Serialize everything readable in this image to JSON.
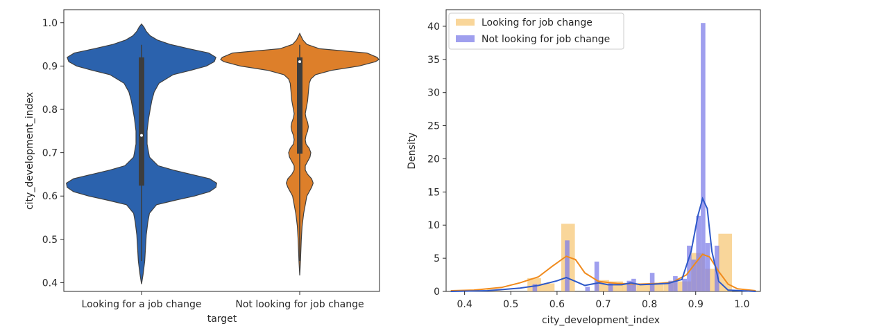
{
  "colors": {
    "looking": "#2b62ad",
    "not_looking": "#dd7f2a",
    "hist_looking": "#f7c878",
    "hist_not_looking": "#7f7fe8",
    "kde_looking": "#f08a1c",
    "kde_not_looking": "#2d58c8",
    "axis": "#262626"
  },
  "chart_data": [
    {
      "type": "violin",
      "xlabel": "target",
      "ylabel": "city_development_index",
      "ylim": [
        0.38,
        1.03
      ],
      "yticks": [
        0.4,
        0.5,
        0.6,
        0.7,
        0.8,
        0.9,
        1.0
      ],
      "ytick_labels": [
        "0.4",
        "0.5",
        "0.6",
        "0.7",
        "0.8",
        "0.9",
        "1.0"
      ],
      "categories": [
        "Looking for a job change",
        "Not looking for job change"
      ],
      "violins": [
        {
          "category": "Looking for a job change",
          "color_key": "looking",
          "min": 0.397,
          "max": 0.997,
          "q1": 0.624,
          "median": 0.74,
          "q3": 0.92,
          "whisker_low": 0.45,
          "whisker_high": 0.949,
          "profile": [
            [
              0.397,
              0.0
            ],
            [
              0.42,
              0.02
            ],
            [
              0.45,
              0.04
            ],
            [
              0.48,
              0.05
            ],
            [
              0.51,
              0.06
            ],
            [
              0.54,
              0.08
            ],
            [
              0.56,
              0.1
            ],
            [
              0.58,
              0.19
            ],
            [
              0.59,
              0.42
            ],
            [
              0.6,
              0.67
            ],
            [
              0.61,
              0.86
            ],
            [
              0.62,
              0.94
            ],
            [
              0.63,
              0.95
            ],
            [
              0.64,
              0.86
            ],
            [
              0.65,
              0.63
            ],
            [
              0.66,
              0.4
            ],
            [
              0.67,
              0.21
            ],
            [
              0.69,
              0.1
            ],
            [
              0.72,
              0.07
            ],
            [
              0.75,
              0.07
            ],
            [
              0.78,
              0.09
            ],
            [
              0.8,
              0.11
            ],
            [
              0.82,
              0.13
            ],
            [
              0.84,
              0.16
            ],
            [
              0.86,
              0.22
            ],
            [
              0.88,
              0.4
            ],
            [
              0.89,
              0.62
            ],
            [
              0.9,
              0.82
            ],
            [
              0.91,
              0.92
            ],
            [
              0.92,
              0.94
            ],
            [
              0.93,
              0.85
            ],
            [
              0.94,
              0.6
            ],
            [
              0.95,
              0.36
            ],
            [
              0.96,
              0.2
            ],
            [
              0.97,
              0.11
            ],
            [
              0.98,
              0.06
            ],
            [
              0.99,
              0.03
            ],
            [
              0.997,
              0.0
            ]
          ]
        },
        {
          "category": "Not looking for job change",
          "color_key": "not_looking",
          "min": 0.417,
          "max": 0.975,
          "q1": 0.698,
          "median": 0.91,
          "q3": 0.92,
          "whisker_low": 0.45,
          "whisker_high": 0.949,
          "profile": [
            [
              0.417,
              0.0
            ],
            [
              0.45,
              0.01
            ],
            [
              0.5,
              0.02
            ],
            [
              0.53,
              0.03
            ],
            [
              0.56,
              0.05
            ],
            [
              0.58,
              0.07
            ],
            [
              0.6,
              0.09
            ],
            [
              0.61,
              0.12
            ],
            [
              0.62,
              0.15
            ],
            [
              0.63,
              0.17
            ],
            [
              0.64,
              0.15
            ],
            [
              0.65,
              0.1
            ],
            [
              0.66,
              0.07
            ],
            [
              0.67,
              0.07
            ],
            [
              0.68,
              0.1
            ],
            [
              0.69,
              0.13
            ],
            [
              0.7,
              0.14
            ],
            [
              0.71,
              0.12
            ],
            [
              0.72,
              0.08
            ],
            [
              0.73,
              0.07
            ],
            [
              0.74,
              0.08
            ],
            [
              0.75,
              0.1
            ],
            [
              0.76,
              0.11
            ],
            [
              0.77,
              0.1
            ],
            [
              0.78,
              0.08
            ],
            [
              0.79,
              0.07
            ],
            [
              0.8,
              0.08
            ],
            [
              0.82,
              0.1
            ],
            [
              0.84,
              0.11
            ],
            [
              0.86,
              0.12
            ],
            [
              0.87,
              0.14
            ],
            [
              0.88,
              0.2
            ],
            [
              0.89,
              0.4
            ],
            [
              0.9,
              0.75
            ],
            [
              0.91,
              0.96
            ],
            [
              0.915,
              1.0
            ],
            [
              0.92,
              0.98
            ],
            [
              0.93,
              0.85
            ],
            [
              0.935,
              0.55
            ],
            [
              0.94,
              0.25
            ],
            [
              0.95,
              0.09
            ],
            [
              0.96,
              0.04
            ],
            [
              0.975,
              0.0
            ]
          ]
        }
      ]
    },
    {
      "type": "histogram+kde",
      "xlabel": "city_development_index",
      "ylabel": "Density",
      "xlim": [
        0.36,
        1.04
      ],
      "ylim": [
        0,
        42.5
      ],
      "xticks": [
        0.4,
        0.5,
        0.6,
        0.7,
        0.8,
        0.9,
        1.0
      ],
      "xtick_labels": [
        "0.4",
        "0.5",
        "0.6",
        "0.7",
        "0.8",
        "0.9",
        "1.0"
      ],
      "yticks": [
        0,
        5,
        10,
        15,
        20,
        25,
        30,
        35,
        40
      ],
      "ytick_labels": [
        "0",
        "5",
        "10",
        "15",
        "20",
        "25",
        "30",
        "35",
        "40"
      ],
      "legend": {
        "placement": "top-left"
      },
      "series": [
        {
          "name": "Looking for job change",
          "hist_color_key": "hist_looking",
          "kde_color_key": "kde_looking",
          "bin_width": 0.0296,
          "bins": [
            [
              0.448,
              0.3
            ],
            [
              0.536,
              2.0
            ],
            [
              0.565,
              1.2
            ],
            [
              0.609,
              10.2
            ],
            [
              0.683,
              1.7
            ],
            [
              0.713,
              1.5
            ],
            [
              0.742,
              1.2
            ],
            [
              0.772,
              1.1
            ],
            [
              0.801,
              1.1
            ],
            [
              0.831,
              1.3
            ],
            [
              0.861,
              1.5
            ],
            [
              0.89,
              5.8
            ],
            [
              0.92,
              3.4
            ],
            [
              0.949,
              8.7
            ]
          ],
          "kde": [
            [
              0.37,
              0.1
            ],
            [
              0.42,
              0.2
            ],
            [
              0.48,
              0.6
            ],
            [
              0.52,
              1.3
            ],
            [
              0.56,
              2.2
            ],
            [
              0.59,
              3.8
            ],
            [
              0.62,
              5.3
            ],
            [
              0.64,
              4.8
            ],
            [
              0.66,
              2.8
            ],
            [
              0.69,
              1.5
            ],
            [
              0.73,
              1.2
            ],
            [
              0.78,
              1.1
            ],
            [
              0.82,
              1.2
            ],
            [
              0.85,
              1.4
            ],
            [
              0.88,
              2.5
            ],
            [
              0.9,
              4.3
            ],
            [
              0.915,
              5.6
            ],
            [
              0.93,
              5.2
            ],
            [
              0.95,
              3.0
            ],
            [
              0.97,
              1.1
            ],
            [
              0.99,
              0.4
            ],
            [
              1.03,
              0.1
            ]
          ]
        },
        {
          "name": "Not looking for job change",
          "hist_color_key": "hist_not_looking",
          "kde_color_key": "kde_not_looking",
          "bin_width": 0.0099,
          "bins": [
            [
              0.547,
              1.1
            ],
            [
              0.617,
              7.7
            ],
            [
              0.661,
              0.7
            ],
            [
              0.681,
              4.5
            ],
            [
              0.711,
              1.3
            ],
            [
              0.751,
              1.6
            ],
            [
              0.761,
              1.9
            ],
            [
              0.801,
              2.8
            ],
            [
              0.841,
              1.6
            ],
            [
              0.851,
              2.3
            ],
            [
              0.871,
              1.9
            ],
            [
              0.881,
              6.9
            ],
            [
              0.891,
              4.8
            ],
            [
              0.901,
              11.4
            ],
            [
              0.911,
              40.5
            ],
            [
              0.921,
              7.3
            ],
            [
              0.941,
              6.9
            ]
          ],
          "kde": [
            [
              0.37,
              0.0
            ],
            [
              0.45,
              0.1
            ],
            [
              0.52,
              0.5
            ],
            [
              0.56,
              0.9
            ],
            [
              0.6,
              1.6
            ],
            [
              0.62,
              2.1
            ],
            [
              0.64,
              1.5
            ],
            [
              0.66,
              0.9
            ],
            [
              0.69,
              1.3
            ],
            [
              0.71,
              1.0
            ],
            [
              0.74,
              1.0
            ],
            [
              0.76,
              1.3
            ],
            [
              0.78,
              1.0
            ],
            [
              0.81,
              1.1
            ],
            [
              0.84,
              1.2
            ],
            [
              0.87,
              1.8
            ],
            [
              0.89,
              6.0
            ],
            [
              0.905,
              11.5
            ],
            [
              0.915,
              14.0
            ],
            [
              0.925,
              12.5
            ],
            [
              0.935,
              6.0
            ],
            [
              0.95,
              1.5
            ],
            [
              0.97,
              0.2
            ],
            [
              1.03,
              0.0
            ]
          ]
        }
      ]
    }
  ]
}
